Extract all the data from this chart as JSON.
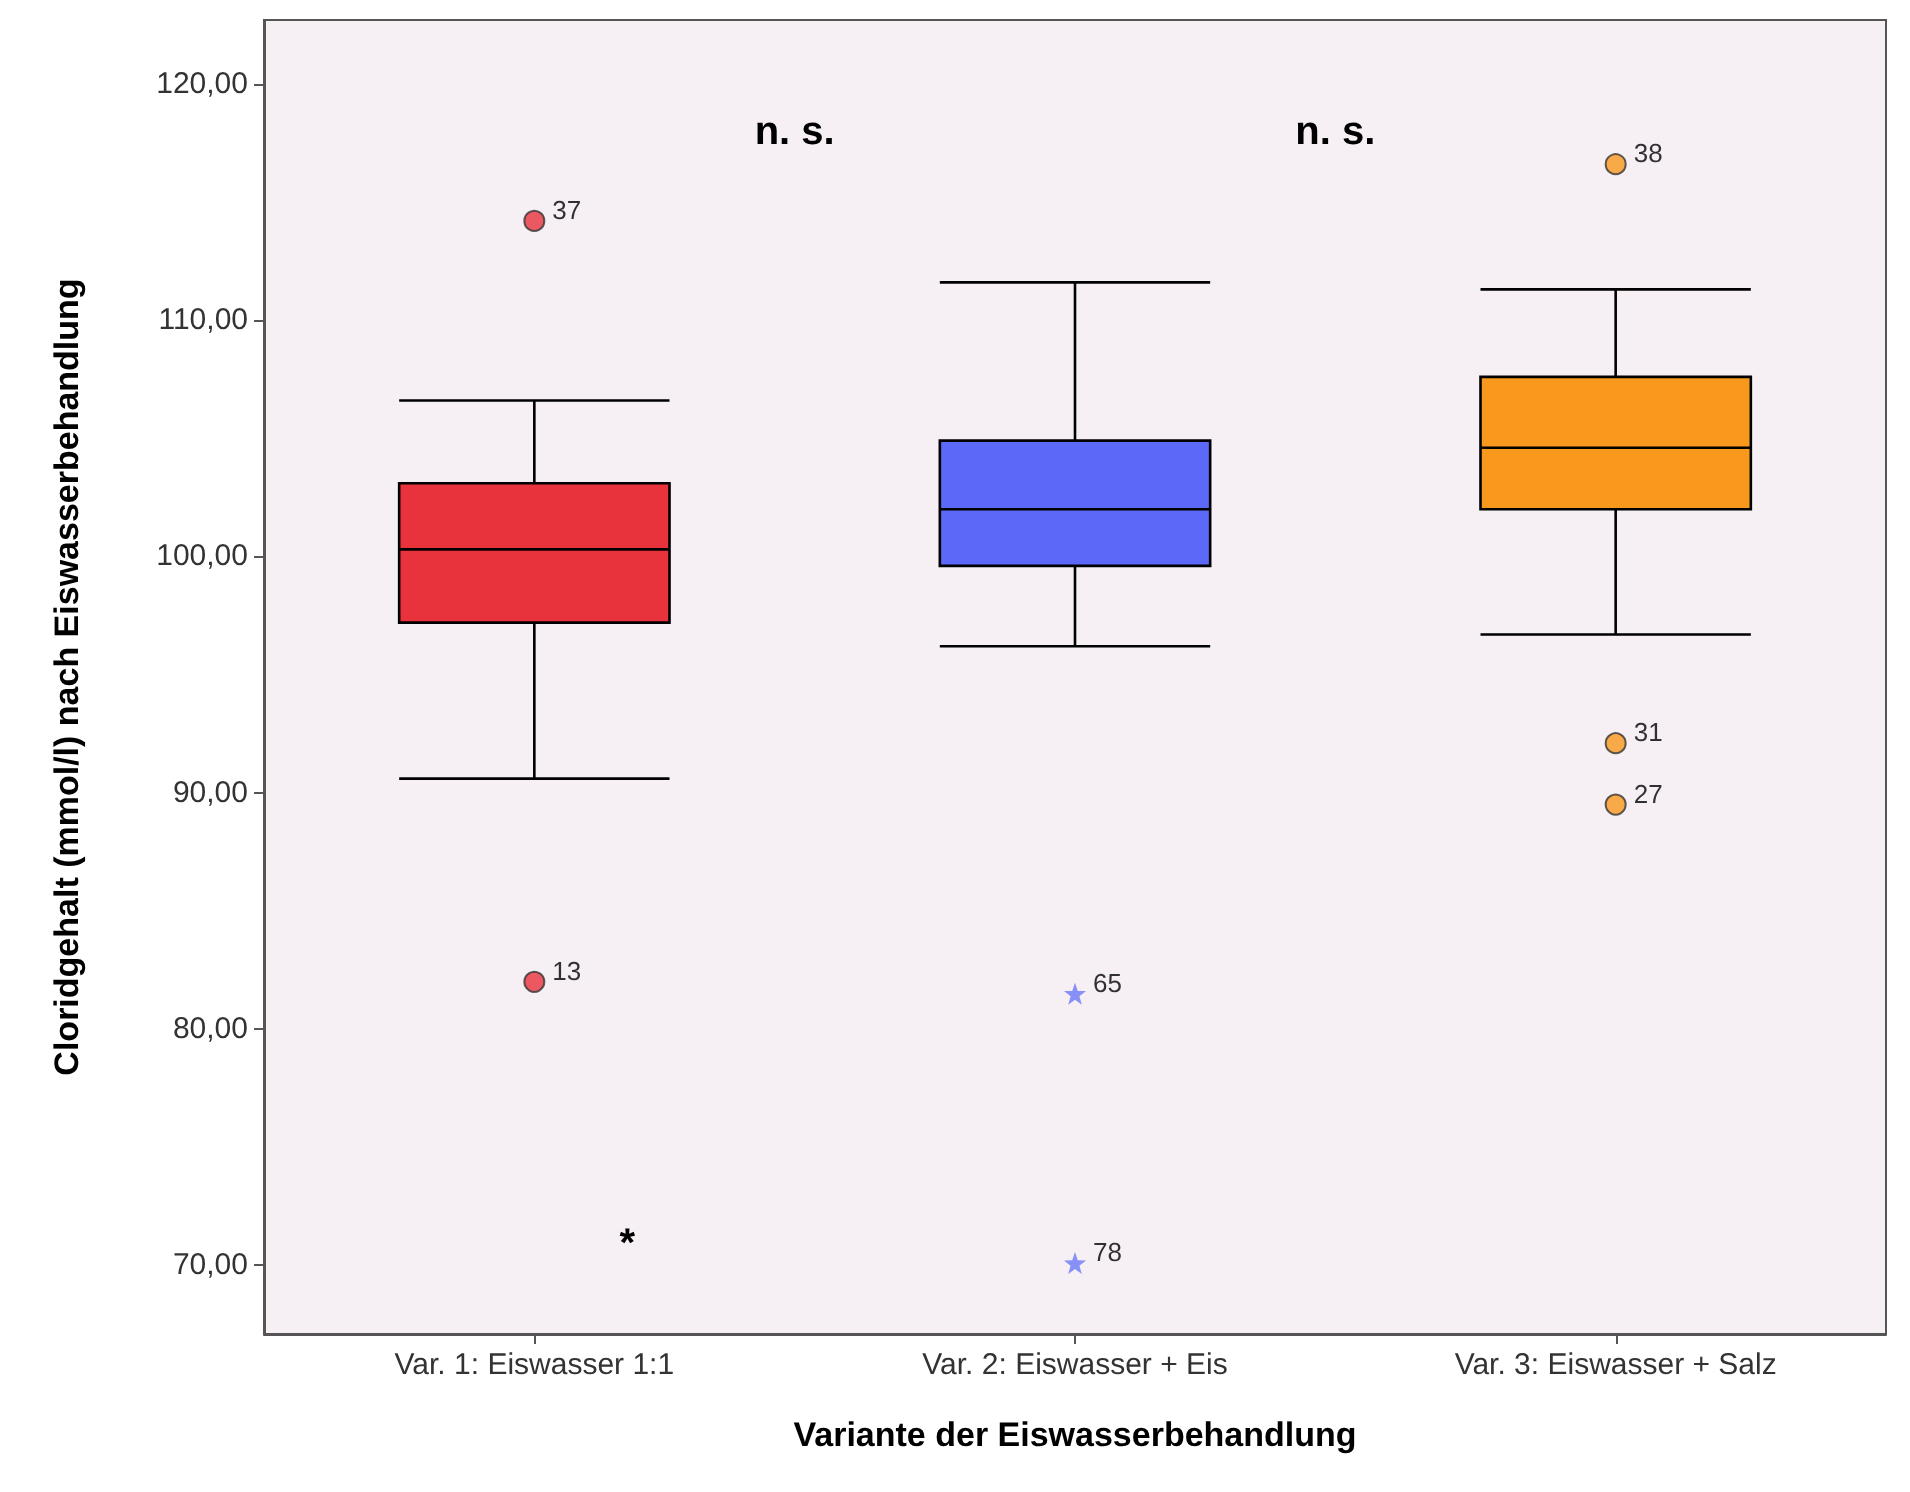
{
  "chart_data": {
    "type": "box",
    "xlabel": "Variante der Eiswasserbehandlung",
    "ylabel": "Cloridgehalt (mmol/l) nach Eiswasserbehandlung",
    "categories": [
      "Var. 1: Eiswasser 1:1",
      "Var. 2: Eiswasser + Eis",
      "Var. 3: Eiswasser + Salz"
    ],
    "colors": [
      "#e8323c",
      "#5b68f8",
      "#f8981c"
    ],
    "boxes": [
      {
        "low": 90.6,
        "q1": 97.2,
        "median": 100.3,
        "q3": 103.1,
        "high": 106.6
      },
      {
        "low": 96.2,
        "q1": 99.6,
        "median": 102.0,
        "q3": 104.9,
        "high": 111.6
      },
      {
        "low": 96.7,
        "q1": 102.0,
        "median": 104.6,
        "q3": 107.6,
        "high": 111.3
      }
    ],
    "series": [
      {
        "type": "scatter",
        "x": [
          "Var. 1: Eiswasser 1:1",
          "Var. 1: Eiswasser 1:1",
          "Var. 3: Eiswasser + Salz",
          "Var. 3: Eiswasser + Salz",
          "Var. 3: Eiswasser + Salz"
        ],
        "values": [
          114.2,
          82.0,
          116.6,
          92.1,
          89.5
        ],
        "marker": "circle",
        "colors": [
          "#e8323c",
          "#e8323c",
          "#f8981c",
          "#f8981c",
          "#f8981c"
        ]
      },
      {
        "type": "scatter",
        "x": [
          "Var. 2: Eiswasser + Eis",
          "Var. 2: Eiswasser + Eis"
        ],
        "values": [
          81.5,
          70.1
        ],
        "marker": "star",
        "color": "#6a78f8"
      }
    ],
    "ylim": [
      67.1,
      122.7
    ],
    "yticks": [
      {
        "value": 70,
        "label": "70,00"
      },
      {
        "value": 80,
        "label": "80,00"
      },
      {
        "value": 90,
        "label": "90,00"
      },
      {
        "value": 100,
        "label": "100,00"
      },
      {
        "value": 110,
        "label": "110,00"
      },
      {
        "value": 120,
        "label": "120,00"
      }
    ],
    "grid": false,
    "annotations": [
      {
        "text": "37",
        "x": "Var. 1: Eiswasser 1:1",
        "y": 114.2
      },
      {
        "text": "13",
        "x": "Var. 1: Eiswasser 1:1",
        "y": 82.0
      },
      {
        "text": "65",
        "x": "Var. 2: Eiswasser + Eis",
        "y": 81.5
      },
      {
        "text": "78",
        "x": "Var. 2: Eiswasser + Eis",
        "y": 70.1
      },
      {
        "text": "38",
        "x": "Var. 3: Eiswasser + Salz",
        "y": 116.6
      },
      {
        "text": "31",
        "x": "Var. 3: Eiswasser + Salz",
        "y": 92.1
      },
      {
        "text": "27",
        "x": "Var. 3: Eiswasser + Salz",
        "y": 89.5
      },
      "n. s.",
      "n. s.",
      "*"
    ]
  }
}
